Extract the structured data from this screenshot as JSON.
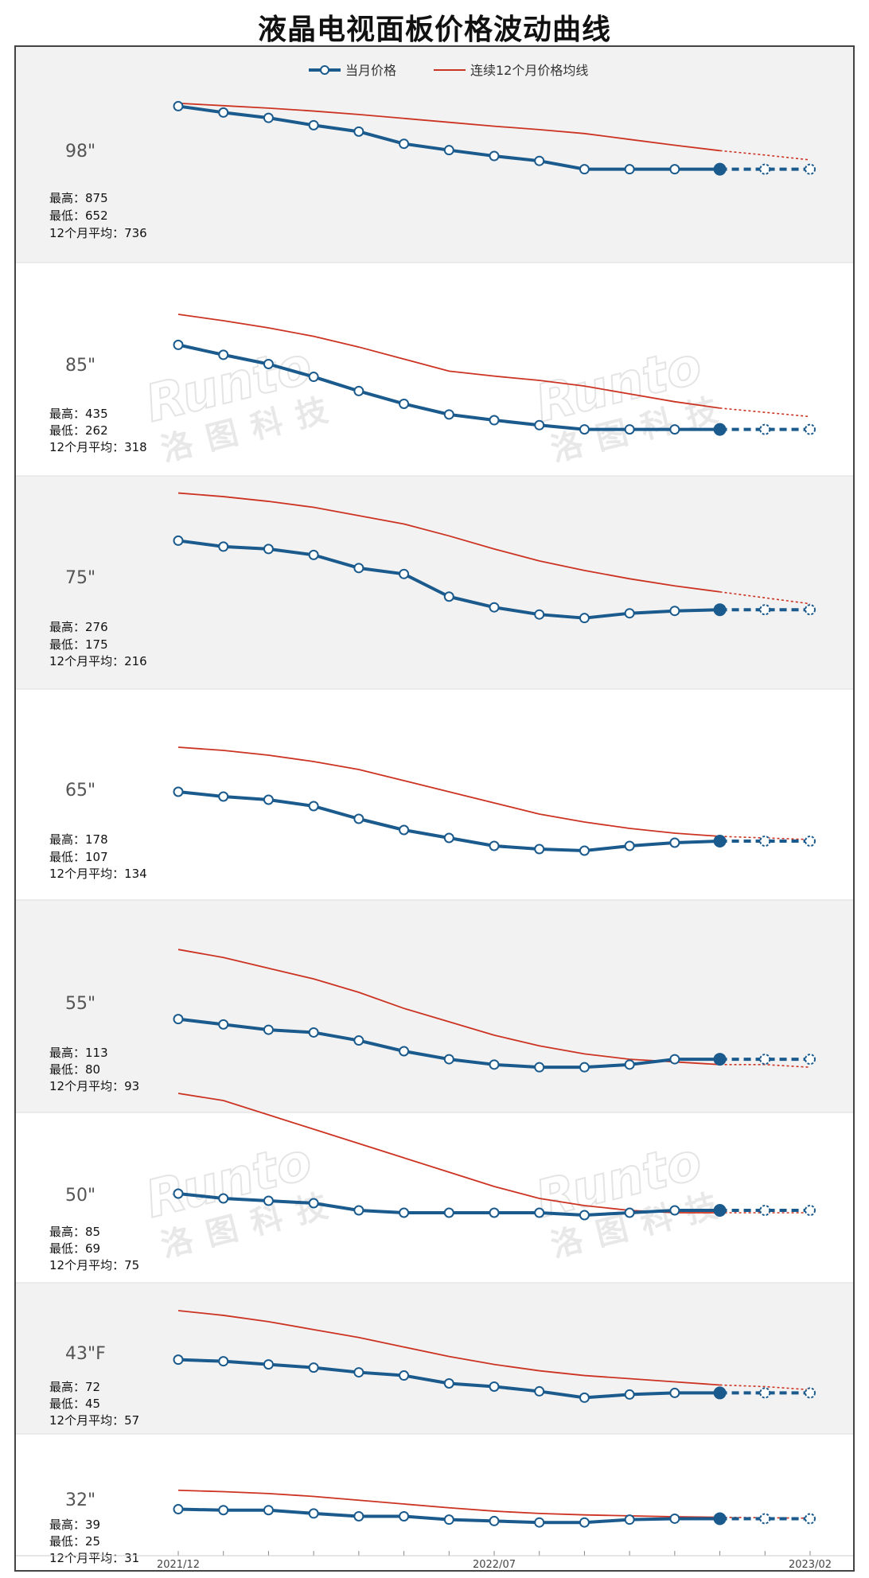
{
  "title": "液晶电视面板价格波动曲线",
  "legend": {
    "current_label": "当月价格",
    "avg_label": "连续12个月价格均线"
  },
  "watermark": {
    "brand": "Runto",
    "brand_cn": "洛图科技"
  },
  "colors": {
    "current": "#1a5a8c",
    "avg": "#cc3322",
    "band_gray": "#f2f2f2",
    "band_white": "#ffffff"
  },
  "chart_data": {
    "type": "line",
    "x": [
      "2021/12",
      "2022/01",
      "2022/02",
      "2022/03",
      "2022/04",
      "2022/05",
      "2022/06",
      "2022/07",
      "2022/08",
      "2022/09",
      "2022/10",
      "2022/11",
      "2022/12",
      "2023/01",
      "2023/02"
    ],
    "x_tick_labels": [
      {
        "index": 0,
        "label": "2021/12"
      },
      {
        "index": 7,
        "label": "2022/07"
      },
      {
        "index": 14,
        "label": "2023/02"
      }
    ],
    "solid_until_index": 12,
    "legend_position": "top-center",
    "panels": [
      {
        "size_label": "98\"",
        "max_label": "最高：875",
        "min_label": "最低：652",
        "avg_label": "12个月平均：736",
        "y_range": [
          615,
          900
        ],
        "current": [
          870,
          857,
          846,
          831,
          818,
          793,
          780,
          768,
          758,
          741,
          741,
          741,
          741,
          741,
          741
        ],
        "avg12": [
          876,
          871,
          866,
          860,
          853,
          845,
          837,
          829,
          822,
          814,
          802,
          790,
          779,
          770,
          760
        ]
      },
      {
        "size_label": "85\"",
        "max_label": "最高：435",
        "min_label": "最低：262",
        "avg_label": "12个月平均：318",
        "y_range": [
          240,
          445
        ],
        "current": [
          402,
          388,
          375,
          357,
          337,
          319,
          304,
          296,
          289,
          283,
          283,
          283,
          283,
          283,
          283
        ],
        "avg12": [
          445,
          436,
          426,
          414,
          399,
          382,
          365,
          358,
          352,
          344,
          333,
          322,
          313,
          307,
          301
        ]
      },
      {
        "size_label": "75\"",
        "max_label": "最高：276",
        "min_label": "最低：175",
        "avg_label": "12个月平均：216",
        "y_range": [
          155,
          290
        ],
        "current": [
          269,
          264,
          262,
          257,
          246,
          241,
          222,
          213,
          207,
          204,
          208,
          210,
          211,
          211,
          211
        ],
        "avg12": [
          309,
          306,
          302,
          297,
          290,
          283,
          273,
          262,
          252,
          244,
          237,
          231,
          226,
          221,
          216
        ]
      },
      {
        "size_label": "65\"",
        "max_label": "最高：178",
        "min_label": "最低：107",
        "avg_label": "12个月平均：134",
        "y_range": [
          95,
          190
        ],
        "current": [
          155,
          152,
          150,
          146,
          138,
          131,
          126,
          121,
          119,
          118,
          121,
          123,
          124,
          124,
          124
        ],
        "avg12": [
          183,
          181,
          178,
          174,
          169,
          162,
          155,
          148,
          141,
          136,
          132,
          129,
          127,
          126,
          125
        ]
      },
      {
        "size_label": "55\"",
        "max_label": "最高：113",
        "min_label": "最低：80",
        "avg_label": "12个月平均：93",
        "y_range": [
          70,
          125
        ],
        "current": [
          104,
          102,
          100,
          99,
          96,
          92,
          89,
          87,
          86,
          86,
          87,
          89,
          89,
          89,
          89
        ],
        "avg12": [
          130,
          127,
          123,
          119,
          114,
          108,
          103,
          98,
          94,
          91,
          89,
          88,
          87,
          87,
          86
        ]
      },
      {
        "size_label": "50\"",
        "max_label": "最高：85",
        "min_label": "最低：69",
        "avg_label": "12个月平均：75",
        "y_range": [
          60,
          90
        ],
        "current": [
          80,
          79,
          78.5,
          78,
          76.5,
          76,
          76,
          76,
          76,
          75.5,
          76,
          76.5,
          76.5,
          76.5,
          76.5
        ],
        "avg12": [
          101,
          99.5,
          96.5,
          93.5,
          90.5,
          87.5,
          84.5,
          81.5,
          79,
          77.5,
          76.5,
          76,
          76,
          76,
          76
        ]
      },
      {
        "size_label": "43\"F",
        "max_label": "最高：72",
        "min_label": "最低：45",
        "avg_label": "12个月平均：57",
        "y_range": [
          38,
          85
        ],
        "current": [
          68.5,
          68,
          67,
          66,
          64.5,
          63.5,
          61,
          60,
          58.5,
          56.5,
          57.5,
          58,
          58,
          58,
          58
        ],
        "avg12": [
          84,
          82.5,
          80.5,
          78,
          75.5,
          72.5,
          69.5,
          67,
          65,
          63.5,
          62.5,
          61.5,
          60.5,
          60,
          59
        ]
      },
      {
        "size_label": "32\"",
        "max_label": "最高：39",
        "min_label": "最低：25",
        "avg_label": "12个月平均：31",
        "y_range": [
          20,
          41
        ],
        "current": [
          31.5,
          31.3,
          31.3,
          30.6,
          30.0,
          30.0,
          29.3,
          29.0,
          28.7,
          28.7,
          29.3,
          29.5,
          29.5,
          29.5,
          29.5
        ],
        "avg12": [
          35.5,
          35.2,
          34.8,
          34.2,
          33.4,
          32.6,
          31.8,
          31.1,
          30.6,
          30.3,
          30.1,
          29.9,
          29.8,
          29.7,
          29.6
        ]
      }
    ]
  }
}
